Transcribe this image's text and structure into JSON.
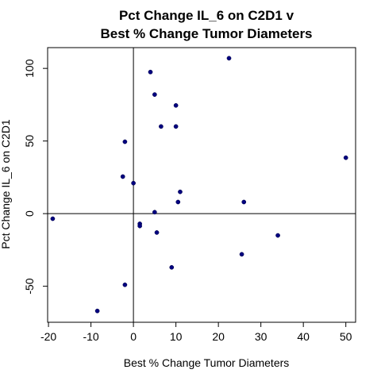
{
  "chart_data": {
    "type": "scatter",
    "title": [
      "Pct Change IL_6 on C2D1 v",
      "Best % Change Tumor Diameters"
    ],
    "xlabel": "Best % Change Tumor Diameters",
    "ylabel": "Pct Change IL_6 on C2D1",
    "xlim": [
      -20.2,
      52.3
    ],
    "ylim": [
      -74.8,
      114.3
    ],
    "x_ticks": [
      -20,
      -10,
      0,
      10,
      20,
      30,
      40,
      50
    ],
    "y_ticks": [
      -50,
      0,
      50,
      100
    ],
    "reference_lines": {
      "x": 0,
      "y": 0
    },
    "point_color": "#000080",
    "points": [
      {
        "x": -19.0,
        "y": -3.5
      },
      {
        "x": -8.5,
        "y": -67.0
      },
      {
        "x": -2.0,
        "y": -49.0
      },
      {
        "x": -2.5,
        "y": 25.5
      },
      {
        "x": -2.0,
        "y": 49.5
      },
      {
        "x": 0.0,
        "y": 21.0
      },
      {
        "x": 1.5,
        "y": -7.0
      },
      {
        "x": 1.5,
        "y": -8.5
      },
      {
        "x": 4.0,
        "y": 97.5
      },
      {
        "x": 5.0,
        "y": 82.0
      },
      {
        "x": 5.0,
        "y": 1.0
      },
      {
        "x": 5.5,
        "y": -13.0
      },
      {
        "x": 6.5,
        "y": 60.0
      },
      {
        "x": 9.0,
        "y": -37.0
      },
      {
        "x": 10.0,
        "y": 60.0
      },
      {
        "x": 10.0,
        "y": 74.5
      },
      {
        "x": 10.5,
        "y": 8.0
      },
      {
        "x": 11.0,
        "y": 15.0
      },
      {
        "x": 22.5,
        "y": 107.0
      },
      {
        "x": 25.5,
        "y": -28.0
      },
      {
        "x": 26.0,
        "y": 8.0
      },
      {
        "x": 34.0,
        "y": -15.0
      },
      {
        "x": 50.0,
        "y": 38.5
      }
    ]
  }
}
